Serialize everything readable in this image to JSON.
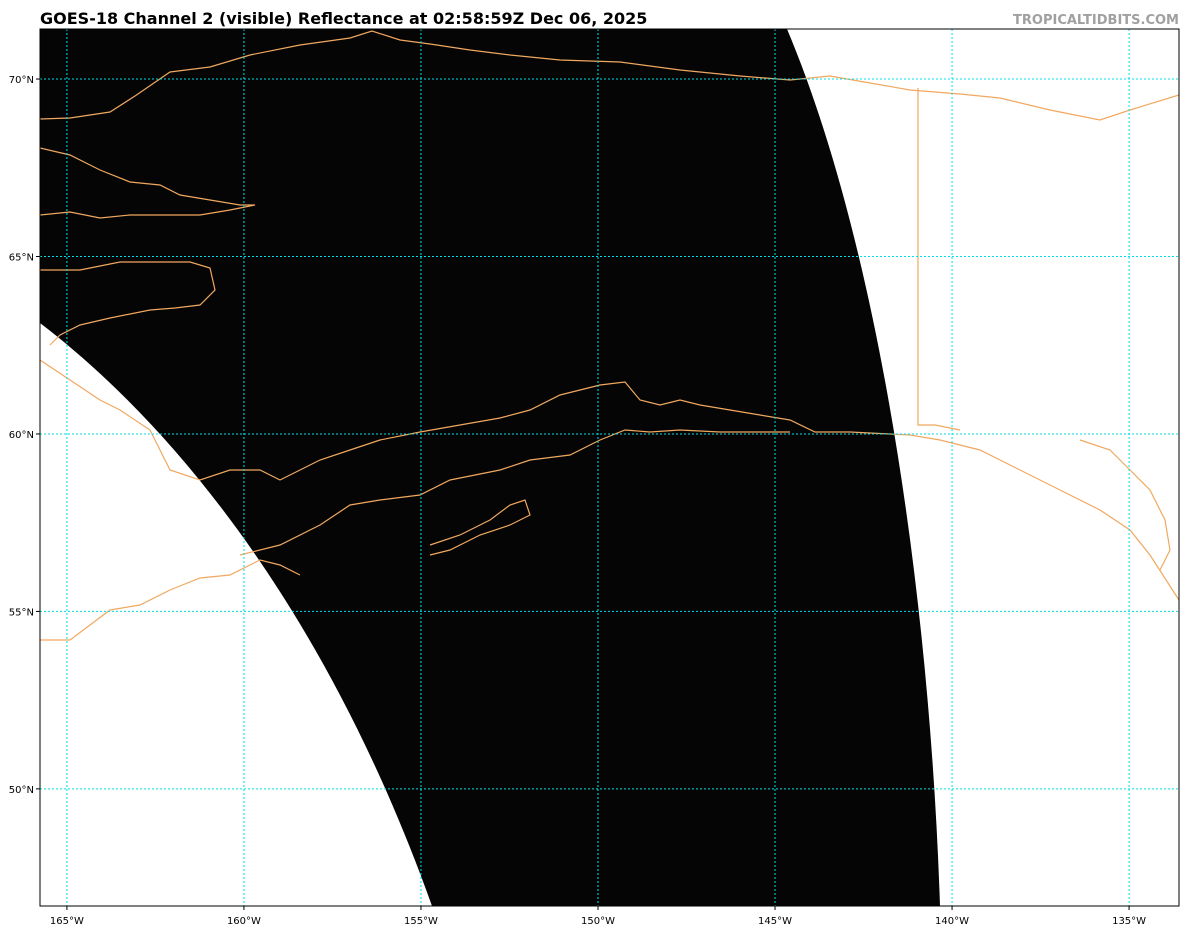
{
  "header": {
    "title": "GOES-18 Channel 2 (visible) Reflectance at 02:58:59Z Dec 06, 2025",
    "credit": "TROPICALTIDBITS.COM"
  },
  "map": {
    "xlim": [
      -165.76,
      -133.59
    ],
    "ylim": [
      46.7,
      71.41
    ],
    "grid": true,
    "lon_ticks": [
      {
        "value": -165,
        "label": "165°W"
      },
      {
        "value": -160,
        "label": "160°W"
      },
      {
        "value": -155,
        "label": "155°W"
      },
      {
        "value": -150,
        "label": "150°W"
      },
      {
        "value": -145,
        "label": "145°W"
      },
      {
        "value": -140,
        "label": "140°W"
      },
      {
        "value": -135,
        "label": "135°W"
      }
    ],
    "lat_ticks": [
      {
        "value": 50,
        "label": "50°N"
      },
      {
        "value": 55,
        "label": "55°N"
      },
      {
        "value": 60,
        "label": "60°N"
      },
      {
        "value": 65,
        "label": "65°N"
      },
      {
        "value": 70,
        "label": "70°N"
      }
    ]
  }
}
